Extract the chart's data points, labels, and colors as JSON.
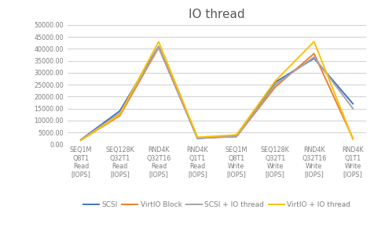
{
  "title": "IO thread",
  "categories": [
    "SEQ1M\nQ8T1\nRead\n[IOPS]",
    "SEQ128K\nQ32T1\nRead\n[IOPS]",
    "RND4K\nQ32T16\nRead\n[IOPS]",
    "RND4K\nQ1T1\nRead\n[IOPS]",
    "SEQ1M\nQ8T1\nWrite\n[IOPS]",
    "SEQ128K\nQ32T1\nWrite\n[IOPS]",
    "RND4K\nQ32T16\nWrite\n[IOPS]",
    "RND4K\nQ1T1\nWrite\n[IOPS]"
  ],
  "series": [
    {
      "name": "SCSI",
      "color": "#4472C4",
      "values": [
        2000,
        14000,
        41000,
        2500,
        3500,
        26000,
        36000,
        17000
      ]
    },
    {
      "name": "VirtIO Block",
      "color": "#ED7D31",
      "values": [
        1800,
        12000,
        40500,
        2800,
        3200,
        24000,
        38000,
        2500
      ]
    },
    {
      "name": "SCSI + IO thread",
      "color": "#A5A5A5",
      "values": [
        1900,
        13000,
        40800,
        2600,
        3300,
        25000,
        36500,
        15000
      ]
    },
    {
      "name": "VirtIO + IO thread",
      "color": "#FFC000",
      "values": [
        1700,
        12500,
        43000,
        3000,
        4000,
        26500,
        43000,
        2200
      ]
    }
  ],
  "ylim": [
    0,
    50000
  ],
  "yticks": [
    0,
    5000,
    10000,
    15000,
    20000,
    25000,
    30000,
    35000,
    40000,
    45000,
    50000
  ],
  "background_color": "#FFFFFF",
  "plot_background": "#FFFFFF",
  "grid_color": "#D0D0D0",
  "title_color": "#595959",
  "tick_color": "#7F7F7F",
  "title_fontsize": 11,
  "tick_fontsize": 5.8,
  "legend_fontsize": 6.5,
  "linewidth": 1.4
}
